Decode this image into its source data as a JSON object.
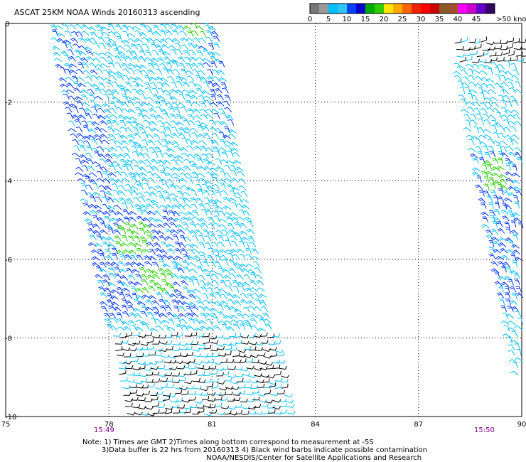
{
  "title": "ASCAT 25KM NOAA Winds 20160313 ascending",
  "legend": {
    "colors": [
      "#777777",
      "#9a9a9a",
      "#00bfff",
      "#33c3ff",
      "#0044ff",
      "#0000cc",
      "#00aa00",
      "#33cc00",
      "#ffe600",
      "#ffaa00",
      "#ff6600",
      "#ee2200",
      "#ff0000",
      "#cc0000",
      "#8b5a2b",
      "#a0522d",
      "#ff00ff",
      "#cc00cc",
      "#6600cc",
      "#330066"
    ],
    "labels": [
      "0",
      "5",
      "10",
      "15",
      "20",
      "25",
      "30",
      "35",
      "40",
      "45"
    ],
    "last_label": ">50 knots"
  },
  "axes": {
    "lat_ticks": [
      "0",
      "-2",
      "-4",
      "-6",
      "-8",
      "-10"
    ],
    "lon_ticks": [
      "75",
      "78",
      "81",
      "84",
      "87",
      "90"
    ]
  },
  "times": [
    "15:49",
    "15:50"
  ],
  "notes": [
    "Note: 1) Times are GMT 2)Times along bottom correspond to measurement at -5S",
    "3)Data buffer is 22 hrs from 20160313 4) Black wind barbs indicate possible contamination",
    "NOAA/NESDIS/Center for Satellite Applications and Research"
  ],
  "barb_colors": {
    "cyan": "#00bfff",
    "blue": "#0033ee",
    "green": "#22cc00",
    "black": "#000000"
  }
}
